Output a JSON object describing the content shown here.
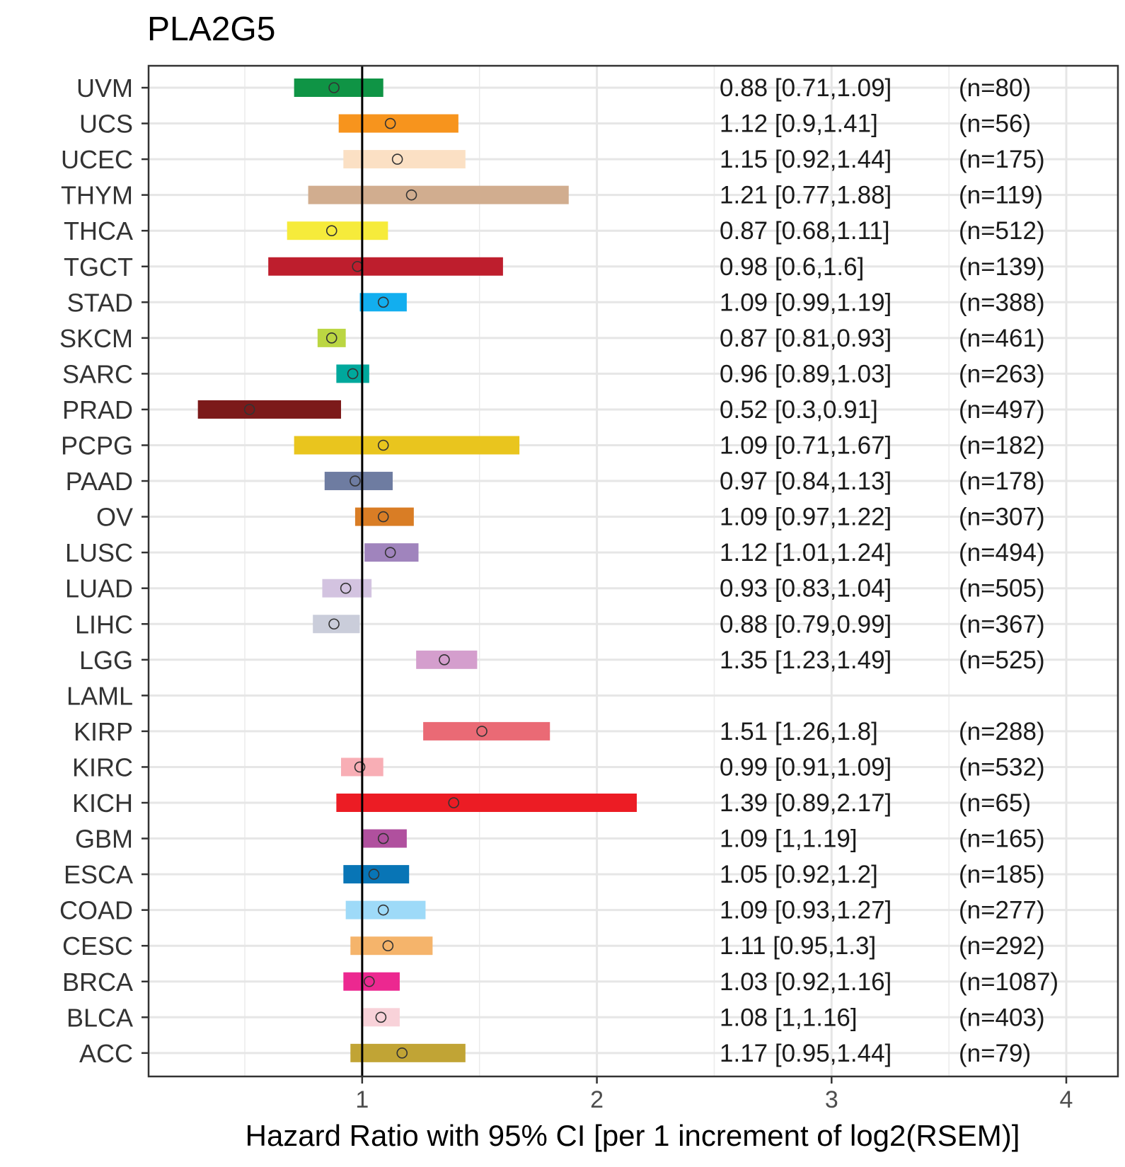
{
  "chart_data": {
    "type": "forest",
    "title": "PLA2G5",
    "xlabel": "Hazard Ratio with 95% CI [per 1 increment of log2(RSEM)]",
    "ylabel": "",
    "xlim": [
      0.09,
      4.22
    ],
    "xticks": [
      1,
      2,
      3,
      4
    ],
    "reference_line": 1,
    "text_columns": [
      2.5,
      3.5
    ],
    "rows": [
      {
        "label": "UVM",
        "hr": 0.88,
        "lo": 0.71,
        "hi": 1.09,
        "text": "0.88 [0.71,1.09]",
        "n": "(n=80)",
        "color": "#0f9445"
      },
      {
        "label": "UCS",
        "hr": 1.12,
        "lo": 0.9,
        "hi": 1.41,
        "text": "1.12 [0.9,1.41]",
        "n": "(n=56)",
        "color": "#f7941d"
      },
      {
        "label": "UCEC",
        "hr": 1.15,
        "lo": 0.92,
        "hi": 1.44,
        "text": "1.15 [0.92,1.44]",
        "n": "(n=175)",
        "color": "#fbe0c4"
      },
      {
        "label": "THYM",
        "hr": 1.21,
        "lo": 0.77,
        "hi": 1.88,
        "text": "1.21 [0.77,1.88]",
        "n": "(n=119)",
        "color": "#d1ad8f"
      },
      {
        "label": "THCA",
        "hr": 0.87,
        "lo": 0.68,
        "hi": 1.11,
        "text": "0.87 [0.68,1.11]",
        "n": "(n=512)",
        "color": "#f6eb3b"
      },
      {
        "label": "TGCT",
        "hr": 0.98,
        "lo": 0.6,
        "hi": 1.6,
        "text": "0.98 [0.6,1.6]",
        "n": "(n=139)",
        "color": "#be1e2d"
      },
      {
        "label": "STAD",
        "hr": 1.09,
        "lo": 0.99,
        "hi": 1.19,
        "text": "1.09 [0.99,1.19]",
        "n": "(n=388)",
        "color": "#12aeef"
      },
      {
        "label": "SKCM",
        "hr": 0.87,
        "lo": 0.81,
        "hi": 0.93,
        "text": "0.87 [0.81,0.93]",
        "n": "(n=461)",
        "color": "#bbd642"
      },
      {
        "label": "SARC",
        "hr": 0.96,
        "lo": 0.89,
        "hi": 1.03,
        "text": "0.96 [0.89,1.03]",
        "n": "(n=263)",
        "color": "#00a89c"
      },
      {
        "label": "PRAD",
        "hr": 0.52,
        "lo": 0.3,
        "hi": 0.91,
        "text": "0.52 [0.3,0.91]",
        "n": "(n=497)",
        "color": "#7c1a1a"
      },
      {
        "label": "PCPG",
        "hr": 1.09,
        "lo": 0.71,
        "hi": 1.67,
        "text": "1.09 [0.71,1.67]",
        "n": "(n=182)",
        "color": "#e9c51e"
      },
      {
        "label": "PAAD",
        "hr": 0.97,
        "lo": 0.84,
        "hi": 1.13,
        "text": "0.97 [0.84,1.13]",
        "n": "(n=178)",
        "color": "#6e7ca1"
      },
      {
        "label": "OV",
        "hr": 1.09,
        "lo": 0.97,
        "hi": 1.22,
        "text": "1.09 [0.97,1.22]",
        "n": "(n=307)",
        "color": "#d97d25"
      },
      {
        "label": "LUSC",
        "hr": 1.12,
        "lo": 1.01,
        "hi": 1.24,
        "text": "1.12 [1.01,1.24]",
        "n": "(n=494)",
        "color": "#a084bd"
      },
      {
        "label": "LUAD",
        "hr": 0.93,
        "lo": 0.83,
        "hi": 1.04,
        "text": "0.93 [0.83,1.04]",
        "n": "(n=505)",
        "color": "#d3c3e0"
      },
      {
        "label": "LIHC",
        "hr": 0.88,
        "lo": 0.79,
        "hi": 0.99,
        "text": "0.88 [0.79,0.99]",
        "n": "(n=367)",
        "color": "#cacdda"
      },
      {
        "label": "LGG",
        "hr": 1.35,
        "lo": 1.23,
        "hi": 1.49,
        "text": "1.35 [1.23,1.49]",
        "n": "(n=525)",
        "color": "#d49ecd"
      },
      {
        "label": "LAML",
        "hr": null,
        "lo": null,
        "hi": null,
        "text": "",
        "n": "",
        "color": "#cccccc"
      },
      {
        "label": "KIRP",
        "hr": 1.51,
        "lo": 1.26,
        "hi": 1.8,
        "text": "1.51 [1.26,1.8]",
        "n": "(n=288)",
        "color": "#ea6a75"
      },
      {
        "label": "KIRC",
        "hr": 0.99,
        "lo": 0.91,
        "hi": 1.09,
        "text": "0.99 [0.91,1.09]",
        "n": "(n=532)",
        "color": "#f8aeb5"
      },
      {
        "label": "KICH",
        "hr": 1.39,
        "lo": 0.89,
        "hi": 2.17,
        "text": "1.39 [0.89,2.17]",
        "n": "(n=65)",
        "color": "#ec1c24"
      },
      {
        "label": "GBM",
        "hr": 1.09,
        "lo": 1.0,
        "hi": 1.19,
        "text": "1.09 [1,1.19]",
        "n": "(n=165)",
        "color": "#b0509e"
      },
      {
        "label": "ESCA",
        "hr": 1.05,
        "lo": 0.92,
        "hi": 1.2,
        "text": "1.05 [0.92,1.2]",
        "n": "(n=185)",
        "color": "#0875b6"
      },
      {
        "label": "COAD",
        "hr": 1.09,
        "lo": 0.93,
        "hi": 1.27,
        "text": "1.09 [0.93,1.27]",
        "n": "(n=277)",
        "color": "#9edaf8"
      },
      {
        "label": "CESC",
        "hr": 1.11,
        "lo": 0.95,
        "hi": 1.3,
        "text": "1.11 [0.95,1.3]",
        "n": "(n=292)",
        "color": "#f5b46b"
      },
      {
        "label": "BRCA",
        "hr": 1.03,
        "lo": 0.92,
        "hi": 1.16,
        "text": "1.03 [0.92,1.16]",
        "n": "(n=1087)",
        "color": "#ec2890"
      },
      {
        "label": "BLCA",
        "hr": 1.08,
        "lo": 1.0,
        "hi": 1.16,
        "text": "1.08 [1,1.16]",
        "n": "(n=403)",
        "color": "#f8d2d9"
      },
      {
        "label": "ACC",
        "hr": 1.17,
        "lo": 0.95,
        "hi": 1.44,
        "text": "1.17 [0.95,1.44]",
        "n": "(n=79)",
        "color": "#c1a435"
      }
    ]
  }
}
